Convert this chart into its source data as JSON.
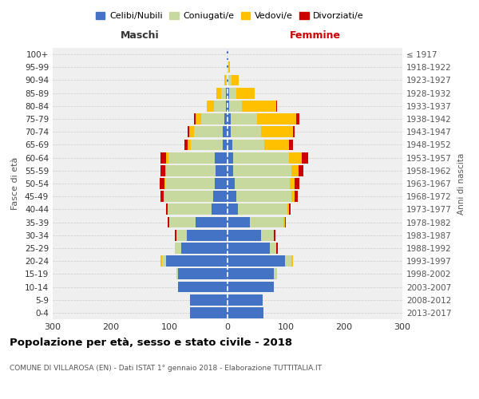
{
  "age_groups": [
    "0-4",
    "5-9",
    "10-14",
    "15-19",
    "20-24",
    "25-29",
    "30-34",
    "35-39",
    "40-44",
    "45-49",
    "50-54",
    "55-59",
    "60-64",
    "65-69",
    "70-74",
    "75-79",
    "80-84",
    "85-89",
    "90-94",
    "95-99",
    "100+"
  ],
  "birth_years": [
    "2013-2017",
    "2008-2012",
    "2003-2007",
    "1998-2002",
    "1993-1997",
    "1988-1992",
    "1983-1987",
    "1978-1982",
    "1973-1977",
    "1968-1972",
    "1963-1967",
    "1958-1962",
    "1953-1957",
    "1948-1952",
    "1943-1947",
    "1938-1942",
    "1933-1937",
    "1928-1932",
    "1923-1927",
    "1918-1922",
    "≤ 1917"
  ],
  "colors": {
    "celibi": "#4472c4",
    "coniugati": "#c8d9a0",
    "vedovi": "#ffc000",
    "divorziati": "#cc0000"
  },
  "male": {
    "celibi": [
      65,
      65,
      85,
      85,
      105,
      80,
      70,
      55,
      28,
      25,
      22,
      20,
      22,
      8,
      8,
      5,
      3,
      3,
      1,
      1,
      1
    ],
    "coniugati": [
      0,
      0,
      0,
      2,
      8,
      10,
      18,
      45,
      75,
      85,
      85,
      85,
      80,
      55,
      50,
      40,
      20,
      8,
      2,
      0,
      0
    ],
    "vedovi": [
      0,
      0,
      0,
      0,
      2,
      0,
      0,
      0,
      0,
      0,
      1,
      2,
      3,
      5,
      8,
      10,
      12,
      8,
      3,
      0,
      0
    ],
    "divorziati": [
      0,
      0,
      0,
      0,
      0,
      0,
      2,
      3,
      2,
      5,
      8,
      8,
      10,
      6,
      3,
      3,
      0,
      0,
      0,
      0,
      0
    ]
  },
  "female": {
    "nubili": [
      62,
      60,
      80,
      80,
      98,
      72,
      58,
      38,
      18,
      15,
      12,
      10,
      10,
      8,
      5,
      5,
      3,
      3,
      2,
      1,
      1
    ],
    "coniugati": [
      0,
      0,
      0,
      5,
      12,
      12,
      22,
      58,
      85,
      95,
      95,
      100,
      95,
      55,
      52,
      45,
      22,
      12,
      5,
      1,
      0
    ],
    "vedovi": [
      0,
      0,
      0,
      0,
      2,
      0,
      0,
      2,
      2,
      5,
      8,
      12,
      22,
      42,
      55,
      68,
      58,
      32,
      12,
      2,
      0
    ],
    "divorziati": [
      0,
      0,
      0,
      0,
      0,
      2,
      2,
      2,
      3,
      5,
      8,
      8,
      12,
      8,
      3,
      5,
      2,
      0,
      0,
      0,
      0
    ]
  },
  "xlim": 300,
  "title": "Popolazione per età, sesso e stato civile - 2018",
  "subtitle": "COMUNE DI VILLAROSA (EN) - Dati ISTAT 1° gennaio 2018 - Elaborazione TUTTITALIA.IT",
  "ylabel_left": "Fasce di età",
  "ylabel_right": "Anni di nascita",
  "xlabel_left": "Maschi",
  "xlabel_right": "Femmine",
  "background_color": "#efefef",
  "bar_height": 0.85
}
